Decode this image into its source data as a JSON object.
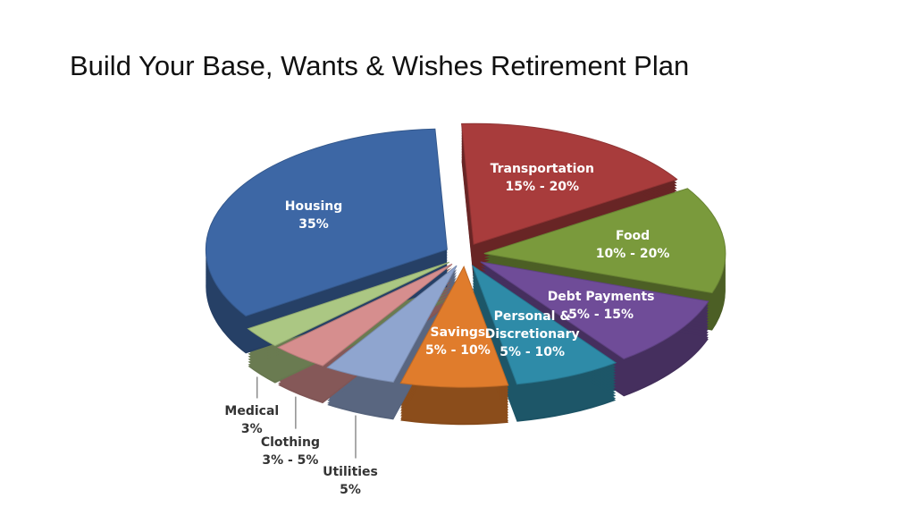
{
  "chart_data": {
    "type": "pie",
    "title": "Build Your Base, Wants & Wishes Retirement Plan",
    "categories": [
      "Transportation",
      "Food",
      "Debt Payments",
      "Personal & Discretionary",
      "Savings",
      "Utilities",
      "Clothing",
      "Medical",
      "Housing"
    ],
    "low": [
      15,
      10,
      5,
      5,
      5,
      5,
      3,
      3,
      35
    ],
    "high": [
      20,
      20,
      15,
      10,
      10,
      5,
      5,
      3,
      35
    ],
    "value_labels": [
      "15% - 20%",
      "10% - 20%",
      "5% - 15%",
      "5% - 10%",
      "5% - 10%",
      "5%",
      "3% - 5%",
      "3%",
      "35%"
    ],
    "colors": [
      "#a83c3c",
      "#7a9a3c",
      "#6f4c98",
      "#2e8ba8",
      "#e07c2c",
      "#8fa5cf",
      "#d68e8e",
      "#abc783",
      "#3d67a5"
    ]
  }
}
